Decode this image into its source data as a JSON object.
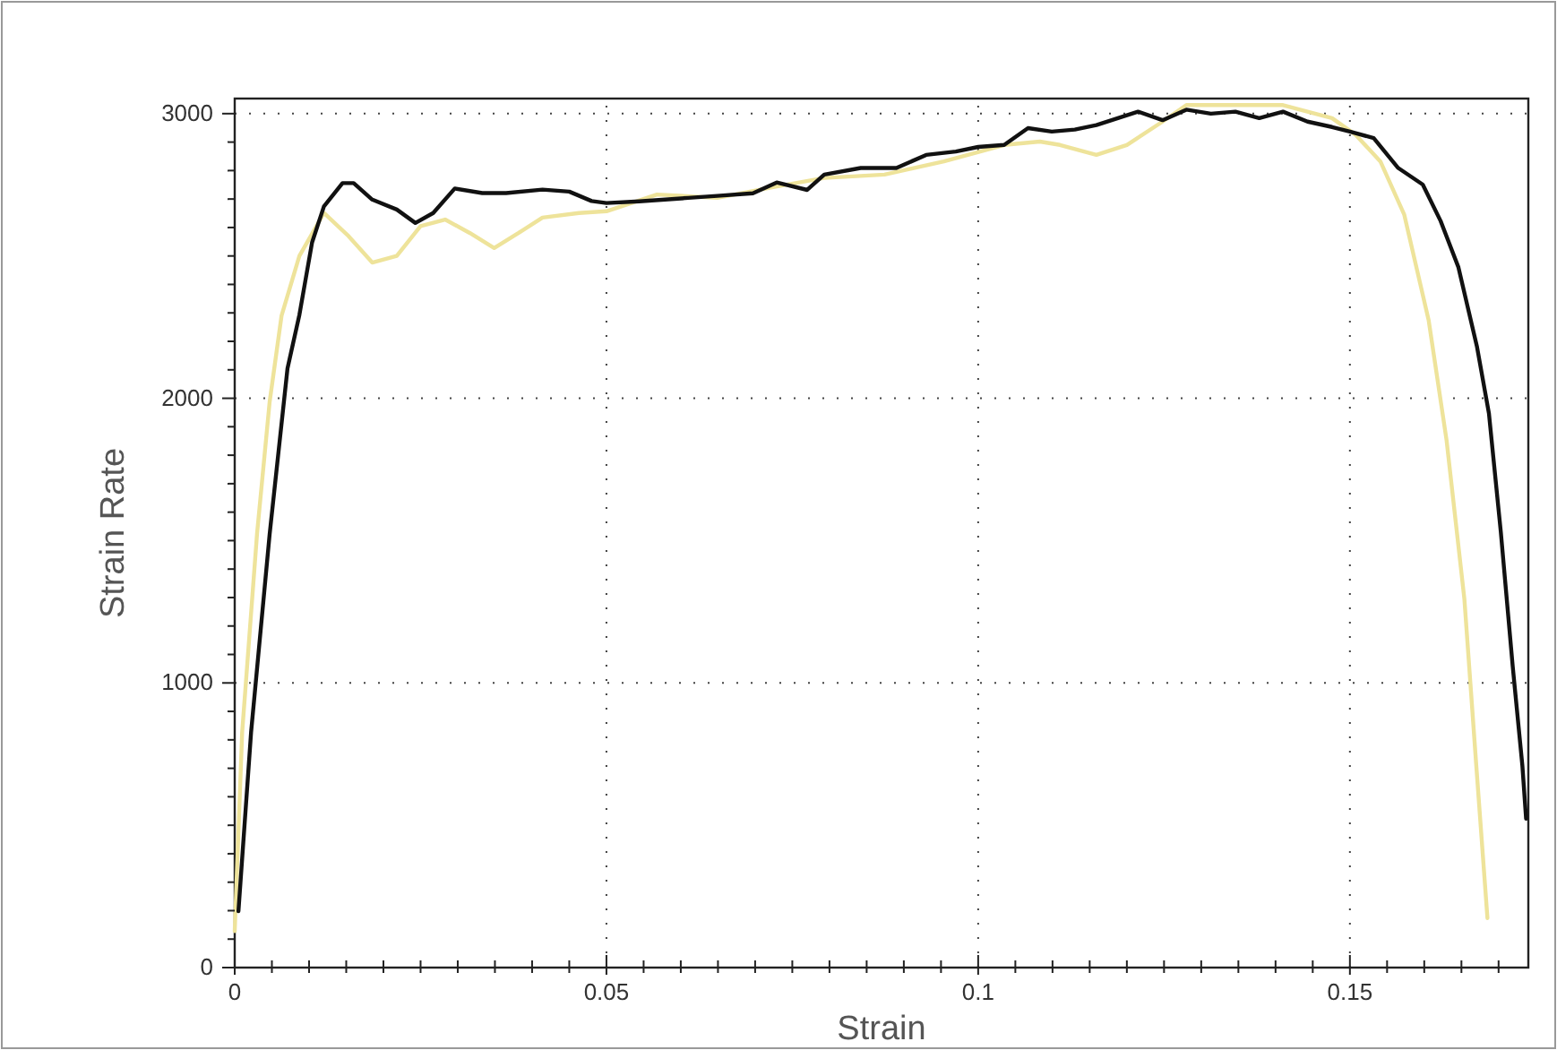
{
  "chart_data": {
    "type": "line",
    "xlabel": "Strain",
    "ylabel": "Strain Rate",
    "xlim": [
      0,
      0.174
    ],
    "ylim": [
      0,
      3053
    ],
    "xticks": [
      0,
      {
        "value": 0.005,
        "label": null
      },
      {
        "value": 0.01,
        "label": null
      },
      {
        "value": 0.015,
        "label": null
      },
      {
        "value": 0.02,
        "label": null
      },
      {
        "value": 0.025,
        "label": null
      },
      {
        "value": 0.03,
        "label": null
      },
      {
        "value": 0.035,
        "label": null
      },
      {
        "value": 0.04,
        "label": null
      },
      {
        "value": 0.045,
        "label": null
      },
      0.05,
      {
        "value": 0.055,
        "label": null
      },
      {
        "value": 0.06,
        "label": null
      },
      {
        "value": 0.065,
        "label": null
      },
      {
        "value": 0.07,
        "label": null
      },
      {
        "value": 0.075,
        "label": null
      },
      {
        "value": 0.08,
        "label": null
      },
      {
        "value": 0.085,
        "label": null
      },
      {
        "value": 0.09,
        "label": null
      },
      {
        "value": 0.095,
        "label": null
      },
      0.1,
      {
        "value": 0.105,
        "label": null
      },
      {
        "value": 0.11,
        "label": null
      },
      {
        "value": 0.115,
        "label": null
      },
      {
        "value": 0.12,
        "label": null
      },
      {
        "value": 0.125,
        "label": null
      },
      {
        "value": 0.13,
        "label": null
      },
      {
        "value": 0.135,
        "label": null
      },
      {
        "value": 0.14,
        "label": null
      },
      {
        "value": 0.145,
        "label": null
      },
      0.15,
      {
        "value": 0.155,
        "label": null
      },
      {
        "value": 0.16,
        "label": null
      },
      {
        "value": 0.165,
        "label": null
      },
      {
        "value": 0.17,
        "label": null
      }
    ],
    "yticks": [
      0,
      {
        "value": 100,
        "label": null
      },
      {
        "value": 200,
        "label": null
      },
      {
        "value": 300,
        "label": null
      },
      {
        "value": 400,
        "label": null
      },
      {
        "value": 500,
        "label": null
      },
      {
        "value": 600,
        "label": null
      },
      {
        "value": 700,
        "label": null
      },
      {
        "value": 800,
        "label": null
      },
      {
        "value": 900,
        "label": null
      },
      1000,
      {
        "value": 1100,
        "label": null
      },
      {
        "value": 1200,
        "label": null
      },
      {
        "value": 1300,
        "label": null
      },
      {
        "value": 1400,
        "label": null
      },
      {
        "value": 1500,
        "label": null
      },
      {
        "value": 1600,
        "label": null
      },
      {
        "value": 1700,
        "label": null
      },
      {
        "value": 1800,
        "label": null
      },
      {
        "value": 1900,
        "label": null
      },
      2000,
      {
        "value": 2100,
        "label": null
      },
      {
        "value": 2200,
        "label": null
      },
      {
        "value": 2300,
        "label": null
      },
      {
        "value": 2400,
        "label": null
      },
      {
        "value": 2500,
        "label": null
      },
      {
        "value": 2600,
        "label": null
      },
      {
        "value": 2700,
        "label": null
      },
      {
        "value": 2800,
        "label": null
      },
      {
        "value": 2900,
        "label": null
      },
      3000
    ],
    "grid": true,
    "line_style": "solid",
    "marker": "none",
    "series": [
      {
        "color": "#eee39a",
        "x": [
          0,
          0.001,
          0.003,
          0.0047,
          0.0063,
          0.0087,
          0.012,
          0.0153,
          0.0185,
          0.0218,
          0.025,
          0.0283,
          0.0316,
          0.0349,
          0.0382,
          0.0414,
          0.0463,
          0.05,
          0.0568,
          0.0649,
          0.0729,
          0.0793,
          0.0874,
          0.0954,
          0.1035,
          0.1083,
          0.111,
          0.1159,
          0.12,
          0.1248,
          0.128,
          0.1346,
          0.141,
          0.1476,
          0.1508,
          0.1541,
          0.1573,
          0.1606,
          0.163,
          0.1654,
          0.167,
          0.1685
        ],
        "values": [
          128,
          826,
          1523,
          1988,
          2290,
          2500,
          2651,
          2570,
          2477,
          2500,
          2605,
          2628,
          2581,
          2528,
          2581,
          2635,
          2651,
          2657,
          2716,
          2704,
          2744,
          2774,
          2786,
          2832,
          2890,
          2902,
          2890,
          2855,
          2890,
          2972,
          3030,
          3030,
          3030,
          2984,
          2925,
          2832,
          2646,
          2273,
          1853,
          1294,
          709,
          174
        ]
      },
      {
        "color": "#111111",
        "x": [
          0.0005,
          0.0022,
          0.0047,
          0.0071,
          0.0087,
          0.0104,
          0.012,
          0.0145,
          0.016,
          0.0185,
          0.0218,
          0.0243,
          0.0267,
          0.0296,
          0.0333,
          0.0365,
          0.0414,
          0.045,
          0.048,
          0.05,
          0.0544,
          0.061,
          0.0649,
          0.0697,
          0.0729,
          0.077,
          0.0793,
          0.0842,
          0.089,
          0.093,
          0.097,
          0.1,
          0.1035,
          0.1067,
          0.1099,
          0.113,
          0.1159,
          0.1215,
          0.1248,
          0.128,
          0.1313,
          0.1346,
          0.1378,
          0.141,
          0.1443,
          0.1476,
          0.15,
          0.1532,
          0.1565,
          0.1598,
          0.1622,
          0.1646,
          0.1671,
          0.1687,
          0.1703,
          0.1719,
          0.1732,
          0.1737
        ],
        "values": [
          198,
          826,
          1523,
          2105,
          2293,
          2547,
          2674,
          2756,
          2756,
          2698,
          2663,
          2616,
          2651,
          2737,
          2721,
          2721,
          2733,
          2726,
          2693,
          2686,
          2692,
          2704,
          2711,
          2720,
          2758,
          2732,
          2786,
          2809,
          2809,
          2855,
          2867,
          2883,
          2890,
          2949,
          2937,
          2944,
          2960,
          3007,
          2977,
          3014,
          3000,
          3007,
          2984,
          3007,
          2972,
          2953,
          2937,
          2914,
          2809,
          2751,
          2623,
          2460,
          2180,
          1947,
          1530,
          1058,
          709,
          523
        ]
      }
    ]
  }
}
